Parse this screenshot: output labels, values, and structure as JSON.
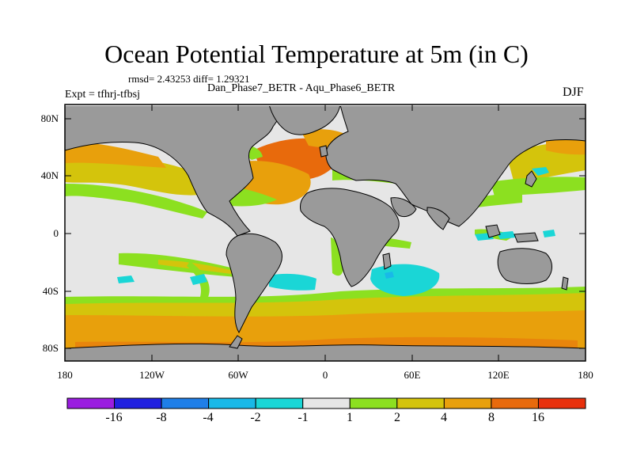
{
  "title": "Ocean Potential Temperature at 5m (in C)",
  "stats_line": "rmsd= 2.43253 diff= 1.29321",
  "comparison": "Dan_Phase7_BETR - Aqu_Phase6_BETR",
  "experiment": "Expt = tfhrj-tfbsj",
  "season": "DJF",
  "lat_labels": [
    "80N",
    "40N",
    "0",
    "40S",
    "80S"
  ],
  "lon_labels": [
    "180",
    "120W",
    "60W",
    "0",
    "60E",
    "120E",
    "180"
  ],
  "colorbar": {
    "boundaries": [
      "-16",
      "-8",
      "-4",
      "-2",
      "-1",
      "1",
      "2",
      "4",
      "8",
      "16"
    ],
    "colors": [
      "#9a1de0",
      "#2020e0",
      "#1f7fe8",
      "#19b9e8",
      "#1ad6d6",
      "#e6e6e6",
      "#8ce020",
      "#d4c40c",
      "#e8a00c",
      "#e86a0c",
      "#e8300c"
    ]
  },
  "land_color": "#9a9a9a",
  "contour_colors": {
    "warm_orange": "#e8a00c",
    "warm_yellow": "#d4c40c",
    "warm_green": "#8ce020",
    "hot": "#e86a0c",
    "cool_cyan": "#1ad6d6"
  }
}
